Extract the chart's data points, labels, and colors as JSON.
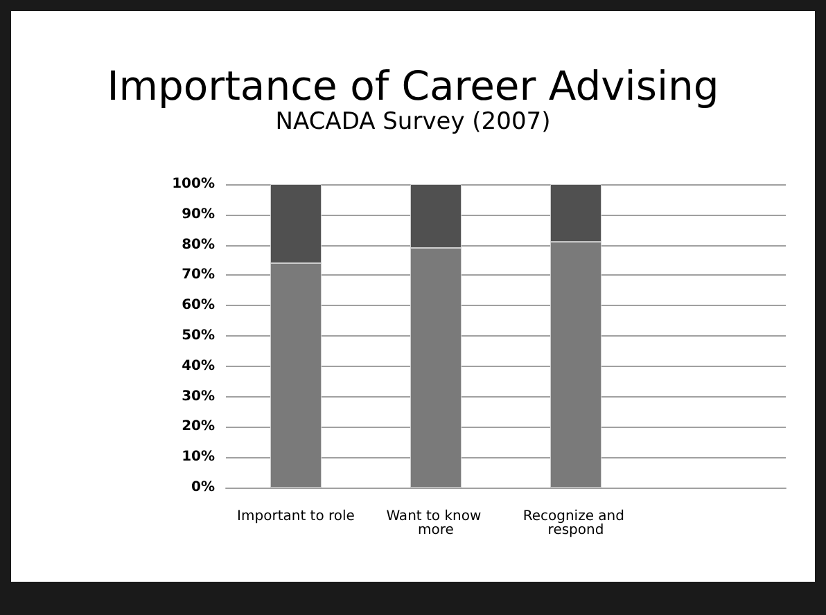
{
  "chart_data": {
    "type": "bar",
    "title": "Importance of Career Advising",
    "subtitle": "NACADA Survey (2007)",
    "categories": [
      "Important to role",
      "Want to know more",
      "Recognize and respond",
      null
    ],
    "stacked": true,
    "series": [
      {
        "color": "#7a7a7a",
        "values": [
          74,
          79,
          81,
          null
        ]
      },
      {
        "color": "#505050",
        "values": [
          26,
          21,
          19,
          null
        ]
      }
    ],
    "ylim": [
      0,
      100
    ],
    "yticks": [
      {
        "value": 0,
        "label": "0%"
      },
      {
        "value": 10,
        "label": "10%"
      },
      {
        "value": 20,
        "label": "20%"
      },
      {
        "value": 30,
        "label": "30%"
      },
      {
        "value": 40,
        "label": "40%"
      },
      {
        "value": 50,
        "label": "50%"
      },
      {
        "value": 60,
        "label": "60%"
      },
      {
        "value": 70,
        "label": "70%"
      },
      {
        "value": 80,
        "label": "80%"
      },
      {
        "value": 90,
        "label": "90%"
      },
      {
        "value": 100,
        "label": "100%"
      }
    ],
    "grid": "y"
  }
}
